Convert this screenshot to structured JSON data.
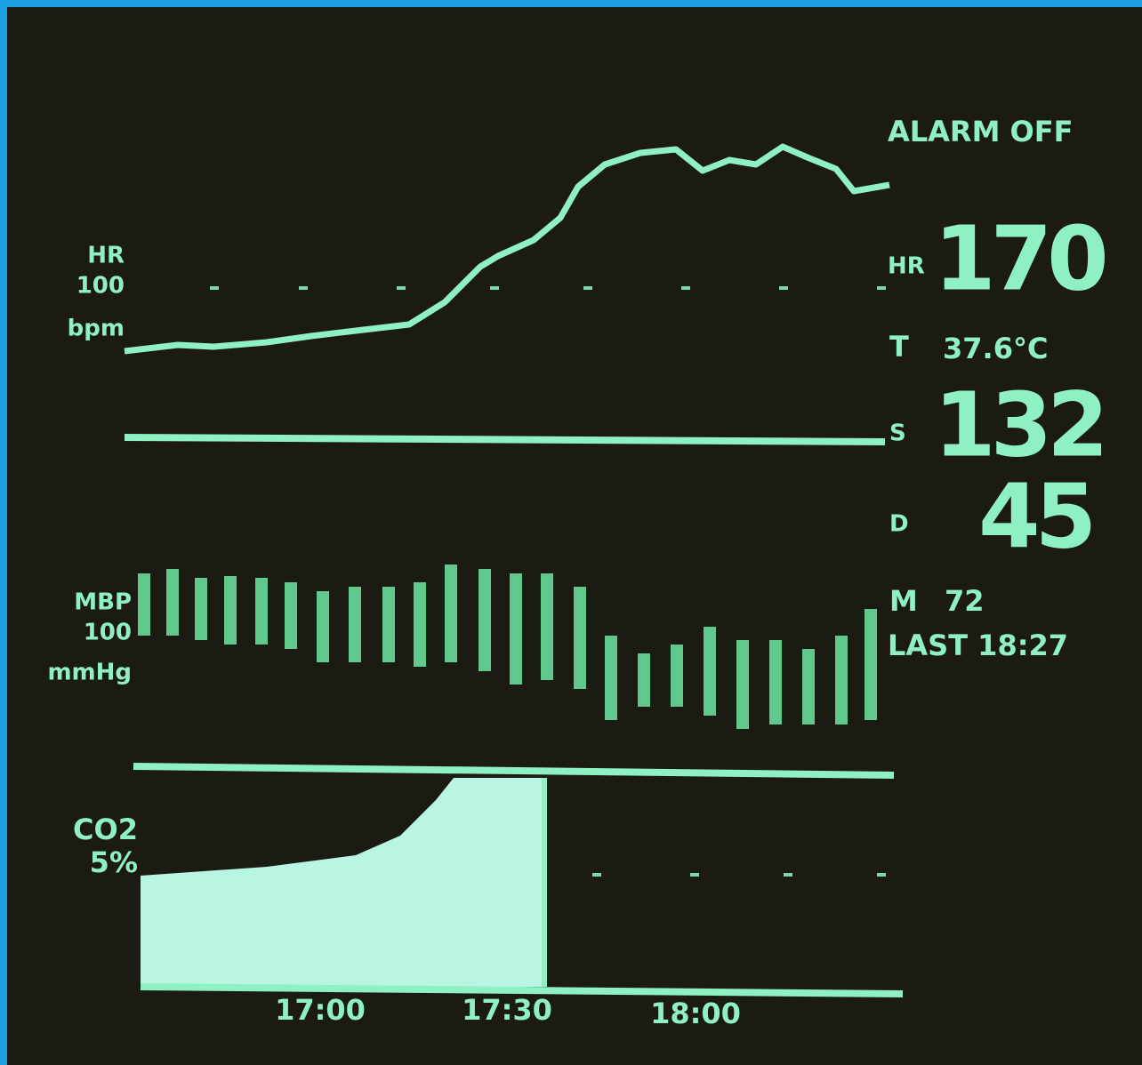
{
  "status": {
    "alarm": "ALARM OFF"
  },
  "hr_panel": {
    "label": "HR",
    "scale": "100",
    "unit": "bpm"
  },
  "bp_panel": {
    "label": "MBP",
    "scale": "100",
    "unit": "mmHg"
  },
  "co2_panel": {
    "label": "CO2",
    "unit": "5%"
  },
  "time_axis": [
    "17:00",
    "17:30",
    "18:00"
  ],
  "readouts": {
    "hr": {
      "label": "HR",
      "value": "170"
    },
    "temp": {
      "label": "T",
      "value": "37.6°C"
    },
    "sys": {
      "label": "S",
      "value": "132"
    },
    "dia": {
      "label": "D",
      "value": "45"
    },
    "mean": {
      "label": "M",
      "value": "72"
    },
    "last": "LAST 18:27"
  }
}
